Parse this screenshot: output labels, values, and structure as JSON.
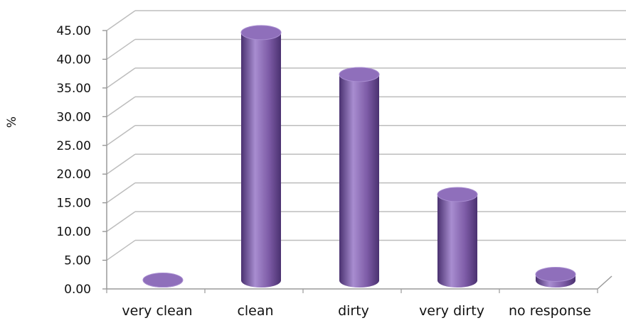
{
  "chart_data": {
    "type": "bar",
    "style": "3d-cylinder",
    "title": "",
    "xlabel": "",
    "ylabel": "%",
    "categories": [
      "very clean",
      "clean",
      "dirty",
      "very dirty",
      "no response"
    ],
    "series": [
      {
        "values": [
          0.8,
          43.9,
          36.6,
          15.7,
          1.8
        ]
      }
    ],
    "ylim": [
      0,
      45
    ],
    "yticks": [
      "0.00",
      "5.00",
      "10.00",
      "15.00",
      "20.00",
      "25.00",
      "30.00",
      "35.00",
      "40.00",
      "45.00"
    ],
    "grid": true,
    "legend": "none",
    "colors": {
      "bar_body": "#7d5ba6",
      "bar_light": "#a88dd0",
      "bar_dark": "#4a3170",
      "bar_top": "#8f6fbb",
      "grid": "#bdbdbd"
    }
  }
}
